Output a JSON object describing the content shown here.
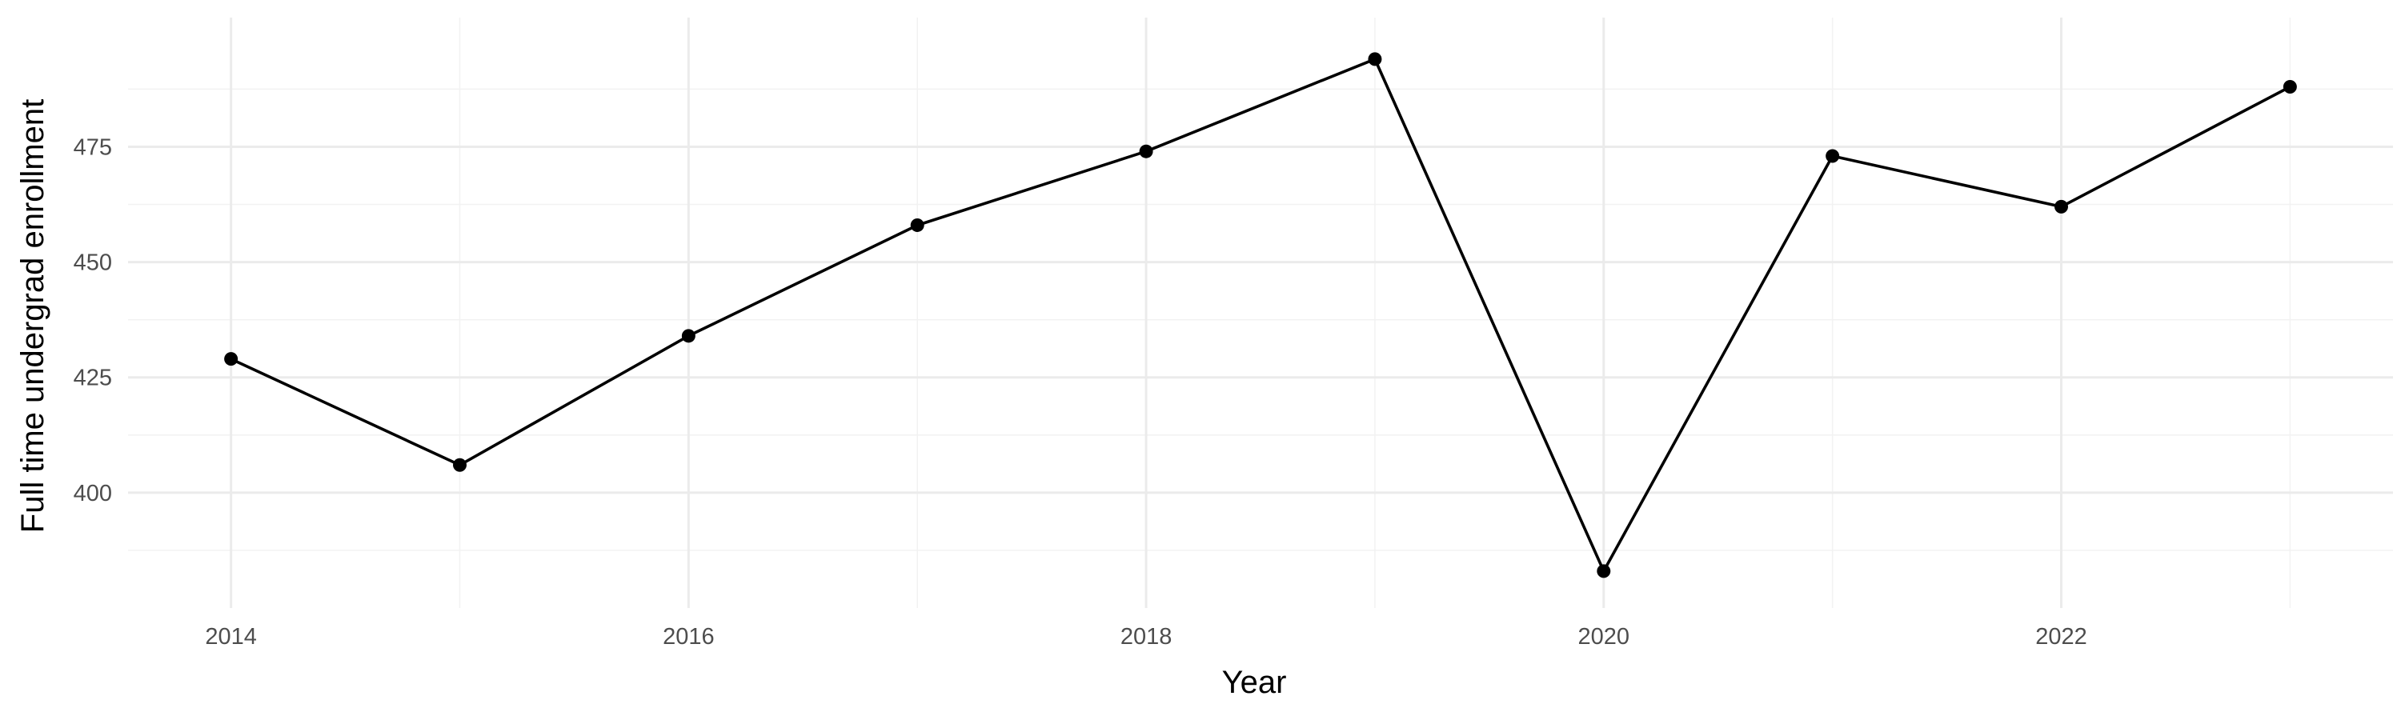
{
  "chart_data": {
    "type": "line",
    "title": "",
    "xlabel": "Year",
    "ylabel": "Full time undergrad enrollment",
    "x": [
      2014,
      2015,
      2016,
      2017,
      2018,
      2019,
      2020,
      2021,
      2022,
      2023
    ],
    "series": [
      {
        "values": [
          429,
          406,
          434,
          458,
          474,
          494,
          383,
          473,
          462,
          488
        ]
      }
    ],
    "xlim": [
      2013.55,
      2023.45
    ],
    "ylim": [
      375,
      503
    ],
    "x_ticks": [
      2014,
      2016,
      2018,
      2020,
      2022
    ],
    "y_ticks": [
      400,
      425,
      450,
      475
    ],
    "grid": true,
    "legend": "none",
    "colors": {
      "line": "#000000",
      "point": "#000000",
      "grid_major": "#ebebeb",
      "grid_minor": "#f2f2f2",
      "tick_text": "#4d4d4d"
    }
  }
}
